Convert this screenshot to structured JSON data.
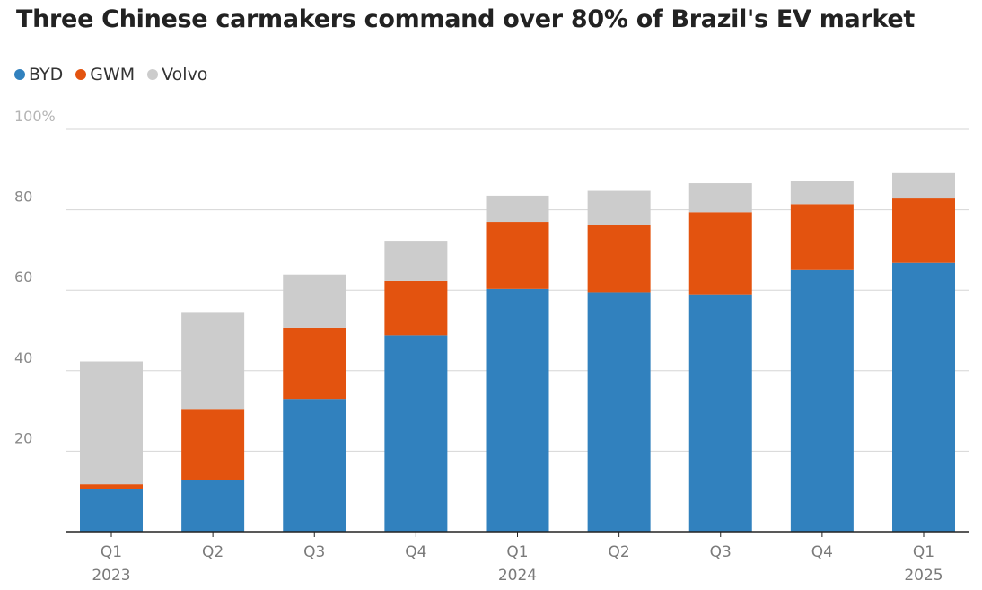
{
  "chart_data": {
    "type": "bar",
    "stacked": true,
    "title": "Three Chinese carmakers command over 80% of Brazil's EV market",
    "xlabel": "",
    "ylabel": "",
    "ylim": [
      0,
      100
    ],
    "yticks": [
      {
        "value": 20,
        "label": "20"
      },
      {
        "value": 40,
        "label": "40"
      },
      {
        "value": 60,
        "label": "60"
      },
      {
        "value": 80,
        "label": "80"
      },
      {
        "value": 100,
        "label": "100%"
      }
    ],
    "categories": [
      {
        "quarter": "Q1",
        "year": "2023"
      },
      {
        "quarter": "Q2",
        "year": ""
      },
      {
        "quarter": "Q3",
        "year": ""
      },
      {
        "quarter": "Q4",
        "year": ""
      },
      {
        "quarter": "Q1",
        "year": "2024"
      },
      {
        "quarter": "Q2",
        "year": ""
      },
      {
        "quarter": "Q3",
        "year": ""
      },
      {
        "quarter": "Q4",
        "year": ""
      },
      {
        "quarter": "Q1",
        "year": "2025"
      }
    ],
    "legend_position": "top-left",
    "series": [
      {
        "name": "BYD",
        "color": "#3181be",
        "values": [
          10.5,
          12.8,
          33,
          48.8,
          60.3,
          59.5,
          59,
          65,
          66.8
        ]
      },
      {
        "name": "GWM",
        "color": "#e3530f",
        "values": [
          1.3,
          17.5,
          17.7,
          13.5,
          16.7,
          16.7,
          20.4,
          16.4,
          16
        ]
      },
      {
        "name": "Volvo",
        "color": "#cccccc",
        "values": [
          30.5,
          24.3,
          13.2,
          10,
          6.5,
          8.5,
          7.2,
          5.7,
          6.3
        ]
      }
    ]
  }
}
